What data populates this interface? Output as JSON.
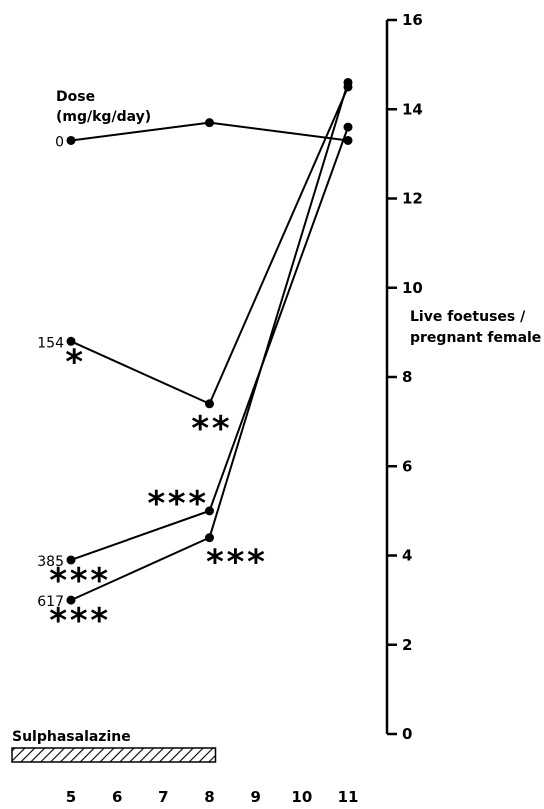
{
  "chart_data": {
    "type": "line",
    "title": "",
    "dose_header": [
      "Dose",
      "(mg/kg/day)"
    ],
    "ylabel_lines": [
      "Live foetuses /",
      "pregnant female"
    ],
    "x_ticks": [
      "5",
      "6",
      "7",
      "8",
      "9",
      "10",
      "11"
    ],
    "xlim": [
      5,
      11
    ],
    "y_ticks": [
      "0",
      "2",
      "4",
      "6",
      "8",
      "10",
      "12",
      "14",
      "16"
    ],
    "ylim": [
      0,
      16
    ],
    "treatment": {
      "label": "Sulphasalazine",
      "start": 5,
      "end": 8
    },
    "series": [
      {
        "name": "0",
        "x": [
          5,
          8,
          11
        ],
        "y": [
          13.3,
          13.7,
          13.3
        ],
        "stars": [
          "",
          "",
          ""
        ]
      },
      {
        "name": "154",
        "x": [
          5,
          8,
          11
        ],
        "y": [
          8.8,
          7.4,
          14.5
        ],
        "stars": [
          "*",
          "**",
          ""
        ]
      },
      {
        "name": "385",
        "x": [
          5,
          8,
          11
        ],
        "y": [
          3.9,
          5.0,
          13.6
        ],
        "stars": [
          "***",
          "***",
          ""
        ]
      },
      {
        "name": "617",
        "x": [
          5,
          8,
          11
        ],
        "y": [
          3.0,
          4.4,
          14.6
        ],
        "stars": [
          "***",
          "***",
          ""
        ]
      }
    ]
  }
}
